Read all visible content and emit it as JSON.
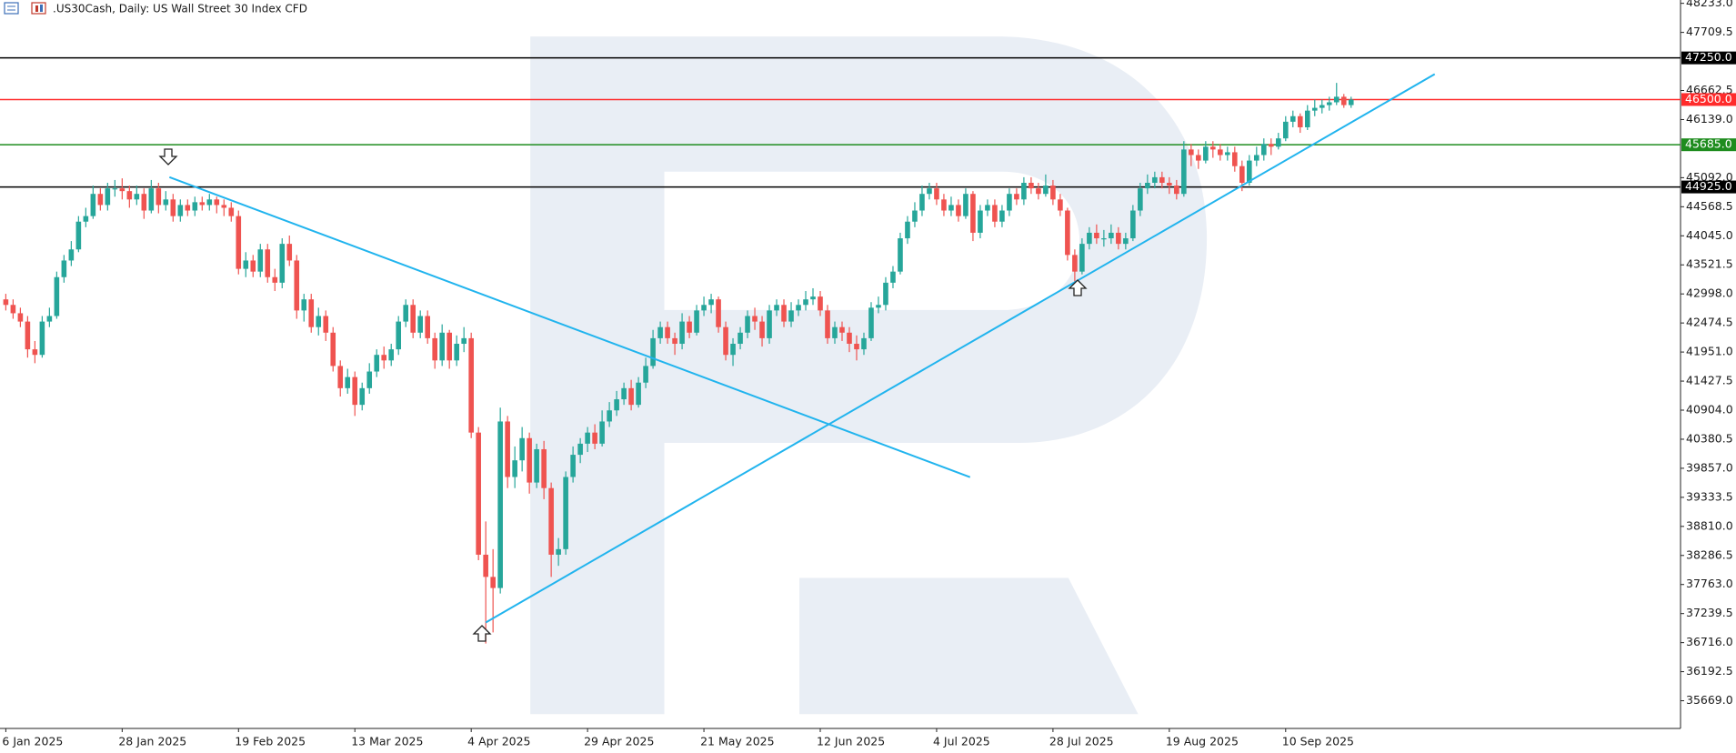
{
  "chart_data": {
    "type": "candlestick",
    "title": ".US30Cash, Daily:  US Wall Street 30 Index CFD",
    "up_color": "#26a69a",
    "down_color": "#ef5350",
    "candles": [
      [
        42900,
        43000,
        42700,
        42800
      ],
      [
        42800,
        42900,
        42550,
        42650
      ],
      [
        42650,
        42750,
        42400,
        42500
      ],
      [
        42500,
        42600,
        41850,
        42000
      ],
      [
        42000,
        42150,
        41750,
        41900
      ],
      [
        41900,
        42600,
        41850,
        42500
      ],
      [
        42500,
        42750,
        42400,
        42600
      ],
      [
        42600,
        43400,
        42550,
        43300
      ],
      [
        43300,
        43700,
        43200,
        43600
      ],
      [
        43600,
        43950,
        43500,
        43800
      ],
      [
        43800,
        44400,
        43750,
        44300
      ],
      [
        44300,
        44550,
        44200,
        44400
      ],
      [
        44400,
        44950,
        44350,
        44800
      ],
      [
        44800,
        44900,
        44500,
        44600
      ],
      [
        44600,
        45000,
        44500,
        44900
      ],
      [
        44900,
        45050,
        44750,
        44900
      ],
      [
        44900,
        45080,
        44700,
        44850
      ],
      [
        44850,
        44950,
        44550,
        44700
      ],
      [
        44700,
        44950,
        44600,
        44800
      ],
      [
        44800,
        44900,
        44350,
        44500
      ],
      [
        44500,
        45050,
        44450,
        44900
      ],
      [
        44900,
        45000,
        44450,
        44600
      ],
      [
        44600,
        44850,
        44500,
        44700
      ],
      [
        44700,
        44800,
        44300,
        44400
      ],
      [
        44400,
        44700,
        44300,
        44600
      ],
      [
        44600,
        44700,
        44400,
        44500
      ],
      [
        44500,
        44750,
        44400,
        44650
      ],
      [
        44650,
        44750,
        44500,
        44600
      ],
      [
        44600,
        44800,
        44500,
        44700
      ],
      [
        44700,
        44750,
        44450,
        44600
      ],
      [
        44600,
        44700,
        44400,
        44550
      ],
      [
        44550,
        44650,
        44300,
        44400
      ],
      [
        44400,
        44500,
        43350,
        43450
      ],
      [
        43450,
        43750,
        43300,
        43600
      ],
      [
        43600,
        43700,
        43300,
        43400
      ],
      [
        43400,
        43900,
        43300,
        43800
      ],
      [
        43800,
        43900,
        43200,
        43300
      ],
      [
        43300,
        43450,
        43050,
        43200
      ],
      [
        43200,
        44000,
        43100,
        43900
      ],
      [
        43900,
        44050,
        43500,
        43600
      ],
      [
        43600,
        43700,
        42550,
        42700
      ],
      [
        42700,
        43000,
        42500,
        42900
      ],
      [
        42900,
        43000,
        42300,
        42400
      ],
      [
        42400,
        42750,
        42250,
        42600
      ],
      [
        42600,
        42700,
        42150,
        42300
      ],
      [
        42300,
        42400,
        41600,
        41700
      ],
      [
        41700,
        41800,
        41150,
        41300
      ],
      [
        41300,
        41650,
        41200,
        41500
      ],
      [
        41500,
        41600,
        40800,
        41000
      ],
      [
        41000,
        41400,
        40900,
        41300
      ],
      [
        41300,
        41750,
        41200,
        41600
      ],
      [
        41600,
        42000,
        41500,
        41900
      ],
      [
        41900,
        42050,
        41650,
        41800
      ],
      [
        41800,
        42100,
        41700,
        42000
      ],
      [
        42000,
        42600,
        41900,
        42500
      ],
      [
        42500,
        42900,
        42400,
        42800
      ],
      [
        42800,
        42900,
        42200,
        42300
      ],
      [
        42300,
        42700,
        42200,
        42600
      ],
      [
        42600,
        42700,
        42100,
        42200
      ],
      [
        42200,
        42300,
        41650,
        41800
      ],
      [
        41800,
        42450,
        41700,
        42300
      ],
      [
        42300,
        42350,
        41650,
        41800
      ],
      [
        41800,
        42250,
        41700,
        42100
      ],
      [
        42100,
        42400,
        41950,
        42200
      ],
      [
        42200,
        42300,
        40400,
        40500
      ],
      [
        40500,
        40600,
        38200,
        38300
      ],
      [
        38300,
        38900,
        36700,
        37900
      ],
      [
        37900,
        38400,
        36900,
        37700
      ],
      [
        37700,
        40950,
        37600,
        40700
      ],
      [
        40700,
        40800,
        39500,
        39700
      ],
      [
        39700,
        40250,
        39500,
        40000
      ],
      [
        40000,
        40600,
        39800,
        40400
      ],
      [
        40400,
        40500,
        39400,
        39600
      ],
      [
        39600,
        40300,
        39500,
        40200
      ],
      [
        40200,
        40350,
        39300,
        39500
      ],
      [
        39500,
        39600,
        37900,
        38300
      ],
      [
        38300,
        38600,
        38100,
        38400
      ],
      [
        38400,
        39800,
        38300,
        39700
      ],
      [
        39700,
        40250,
        39600,
        40100
      ],
      [
        40100,
        40400,
        39950,
        40300
      ],
      [
        40300,
        40600,
        40150,
        40500
      ],
      [
        40500,
        40650,
        40200,
        40300
      ],
      [
        40300,
        40900,
        40250,
        40700
      ],
      [
        40700,
        41050,
        40600,
        40900
      ],
      [
        40900,
        41250,
        40800,
        41100
      ],
      [
        41100,
        41400,
        41000,
        41300
      ],
      [
        41300,
        41450,
        40900,
        41000
      ],
      [
        41000,
        41500,
        40950,
        41400
      ],
      [
        41400,
        41850,
        41300,
        41700
      ],
      [
        41700,
        42350,
        41650,
        42200
      ],
      [
        42200,
        42500,
        42100,
        42400
      ],
      [
        42400,
        42500,
        42100,
        42200
      ],
      [
        42200,
        42300,
        41900,
        42100
      ],
      [
        42100,
        42650,
        42000,
        42500
      ],
      [
        42500,
        42600,
        42200,
        42300
      ],
      [
        42300,
        42800,
        42250,
        42700
      ],
      [
        42700,
        42950,
        42600,
        42800
      ],
      [
        42800,
        43000,
        42650,
        42900
      ],
      [
        42900,
        42950,
        42300,
        42400
      ],
      [
        42400,
        42500,
        41800,
        41900
      ],
      [
        41900,
        42200,
        41700,
        42100
      ],
      [
        42100,
        42400,
        42000,
        42300
      ],
      [
        42300,
        42700,
        42200,
        42600
      ],
      [
        42600,
        42750,
        42350,
        42500
      ],
      [
        42500,
        42600,
        42050,
        42200
      ],
      [
        42200,
        42800,
        42100,
        42700
      ],
      [
        42700,
        42900,
        42600,
        42800
      ],
      [
        42800,
        42900,
        42400,
        42500
      ],
      [
        42500,
        42850,
        42400,
        42700
      ],
      [
        42700,
        42900,
        42600,
        42800
      ],
      [
        42800,
        43050,
        42700,
        42900
      ],
      [
        42900,
        43100,
        42800,
        42950
      ],
      [
        42950,
        43050,
        42600,
        42700
      ],
      [
        42700,
        42800,
        42100,
        42200
      ],
      [
        42200,
        42500,
        42100,
        42400
      ],
      [
        42400,
        42500,
        42150,
        42300
      ],
      [
        42300,
        42400,
        41950,
        42100
      ],
      [
        42100,
        42250,
        41800,
        42000
      ],
      [
        42000,
        42300,
        41900,
        42200
      ],
      [
        42200,
        42850,
        42150,
        42750
      ],
      [
        42750,
        42950,
        42650,
        42800
      ],
      [
        42800,
        43300,
        42700,
        43200
      ],
      [
        43200,
        43500,
        43100,
        43400
      ],
      [
        43400,
        44100,
        43350,
        44000
      ],
      [
        44000,
        44400,
        43900,
        44300
      ],
      [
        44300,
        44650,
        44200,
        44500
      ],
      [
        44500,
        44950,
        44400,
        44800
      ],
      [
        44800,
        45000,
        44700,
        44900
      ],
      [
        44900,
        45000,
        44600,
        44700
      ],
      [
        44700,
        44800,
        44400,
        44500
      ],
      [
        44500,
        44750,
        44400,
        44600
      ],
      [
        44600,
        44700,
        44300,
        44400
      ],
      [
        44400,
        44900,
        44350,
        44800
      ],
      [
        44800,
        44850,
        43950,
        44100
      ],
      [
        44100,
        44600,
        44000,
        44500
      ],
      [
        44500,
        44700,
        44400,
        44600
      ],
      [
        44600,
        44700,
        44200,
        44300
      ],
      [
        44300,
        44600,
        44200,
        44500
      ],
      [
        44500,
        44900,
        44400,
        44800
      ],
      [
        44800,
        44900,
        44600,
        44700
      ],
      [
        44700,
        45100,
        44600,
        45000
      ],
      [
        45000,
        45100,
        44800,
        44900
      ],
      [
        44900,
        45000,
        44700,
        44800
      ],
      [
        44800,
        45150,
        44750,
        44950
      ],
      [
        44950,
        45050,
        44600,
        44700
      ],
      [
        44700,
        44800,
        44400,
        44500
      ],
      [
        44500,
        44550,
        43600,
        43700
      ],
      [
        43700,
        43800,
        43200,
        43400
      ],
      [
        43400,
        44000,
        43350,
        43900
      ],
      [
        43900,
        44200,
        43800,
        44100
      ],
      [
        44100,
        44250,
        43900,
        44000
      ],
      [
        44000,
        44150,
        43850,
        44000
      ],
      [
        44000,
        44250,
        43900,
        44100
      ],
      [
        44100,
        44200,
        43800,
        43900
      ],
      [
        43900,
        44100,
        43800,
        44000
      ],
      [
        44000,
        44600,
        43950,
        44500
      ],
      [
        44500,
        45000,
        44400,
        44900
      ],
      [
        44900,
        45150,
        44800,
        45000
      ],
      [
        45000,
        45200,
        44900,
        45100
      ],
      [
        45100,
        45200,
        44900,
        45000
      ],
      [
        45000,
        45100,
        44800,
        44950
      ],
      [
        44950,
        45050,
        44700,
        44800
      ],
      [
        44800,
        45750,
        44750,
        45600
      ],
      [
        45600,
        45700,
        45300,
        45500
      ],
      [
        45500,
        45600,
        45250,
        45400
      ],
      [
        45400,
        45750,
        45350,
        45650
      ],
      [
        45650,
        45750,
        45450,
        45600
      ],
      [
        45600,
        45700,
        45400,
        45500
      ],
      [
        45500,
        45650,
        45400,
        45550
      ],
      [
        45550,
        45650,
        45200,
        45300
      ],
      [
        45300,
        45400,
        44850,
        45000
      ],
      [
        45000,
        45500,
        44950,
        45400
      ],
      [
        45400,
        45650,
        45300,
        45500
      ],
      [
        45500,
        45800,
        45400,
        45700
      ],
      [
        45700,
        45800,
        45500,
        45650
      ],
      [
        45650,
        45900,
        45600,
        45800
      ],
      [
        45800,
        46200,
        45750,
        46100
      ],
      [
        46100,
        46300,
        46000,
        46200
      ],
      [
        46200,
        46250,
        45900,
        46000
      ],
      [
        46000,
        46400,
        45950,
        46300
      ],
      [
        46300,
        46500,
        46200,
        46350
      ],
      [
        46350,
        46500,
        46250,
        46400
      ],
      [
        46400,
        46550,
        46300,
        46450
      ],
      [
        46450,
        46800,
        46400,
        46550
      ],
      [
        46550,
        46600,
        46350,
        46400
      ],
      [
        46400,
        46550,
        46350,
        46500
      ]
    ],
    "xlim": [
      -0.8,
      230.3
    ],
    "xticks": [
      {
        "value": 0,
        "label": "6 Jan 2025"
      },
      {
        "value": 16,
        "label": "28 Jan 2025"
      },
      {
        "value": 32,
        "label": "19 Feb 2025"
      },
      {
        "value": 48,
        "label": "13 Mar 2025"
      },
      {
        "value": 64,
        "label": "4 Apr 2025"
      },
      {
        "value": 80,
        "label": "29 Apr 2025"
      },
      {
        "value": 96,
        "label": "21 May 2025"
      },
      {
        "value": 112,
        "label": "12 Jun 2025"
      },
      {
        "value": 128,
        "label": "4 Jul 2025"
      },
      {
        "value": 144,
        "label": "28 Jul 2025"
      },
      {
        "value": 160,
        "label": "19 Aug 2025"
      },
      {
        "value": 176,
        "label": "10 Sep 2025"
      }
    ],
    "ylim": [
      35170,
      48293
    ],
    "yticks": [
      {
        "value": 48233,
        "label": "48233.0"
      },
      {
        "value": 47709.5,
        "label": "47709.5"
      },
      {
        "value": 46662.5,
        "label": "46662.5"
      },
      {
        "value": 46139,
        "label": "46139.0"
      },
      {
        "value": 45092,
        "label": "45092.0"
      },
      {
        "value": 44568.5,
        "label": "44568.5"
      },
      {
        "value": 44045,
        "label": "44045.0"
      },
      {
        "value": 43521.5,
        "label": "43521.5"
      },
      {
        "value": 42998,
        "label": "42998.0"
      },
      {
        "value": 42474.5,
        "label": "42474.5"
      },
      {
        "value": 41951,
        "label": "41951.0"
      },
      {
        "value": 41427.5,
        "label": "41427.5"
      },
      {
        "value": 40904,
        "label": "40904.0"
      },
      {
        "value": 40380.5,
        "label": "40380.5"
      },
      {
        "value": 39857,
        "label": "39857.0"
      },
      {
        "value": 39333.5,
        "label": "39333.5"
      },
      {
        "value": 38810,
        "label": "38810.0"
      },
      {
        "value": 38286.5,
        "label": "38286.5"
      },
      {
        "value": 37763,
        "label": "37763.0"
      },
      {
        "value": 37239.5,
        "label": "37239.5"
      },
      {
        "value": 36716,
        "label": "36716.0"
      },
      {
        "value": 36192.5,
        "label": "36192.5"
      },
      {
        "value": 35669,
        "label": "35669.0"
      }
    ],
    "levels": [
      {
        "value": 47250,
        "label": "47250.0",
        "color": "#000000"
      },
      {
        "value": 46500,
        "label": "46500.0",
        "color": "#ff2b2b"
      },
      {
        "value": 45685,
        "label": "45685.0",
        "color": "#1e8c1e"
      },
      {
        "value": 44925,
        "label": "44925.0",
        "color": "#000000"
      }
    ],
    "trendlines": [
      {
        "x": [
          22.5,
          132.6
        ],
        "y": [
          45102,
          39697
        ],
        "color": "#21b4ee"
      },
      {
        "x": [
          66,
          196.5
        ],
        "y": [
          37078,
          46957
        ],
        "color": "#21b4ee"
      }
    ]
  }
}
